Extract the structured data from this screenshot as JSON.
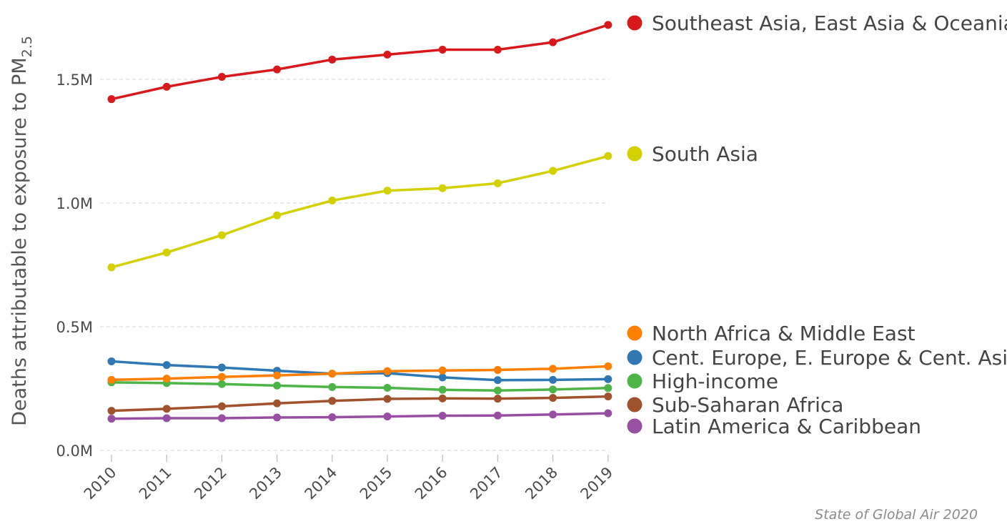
{
  "chart_data": {
    "type": "line",
    "x": [
      "2010",
      "2011",
      "2012",
      "2013",
      "2014",
      "2015",
      "2016",
      "2017",
      "2018",
      "2019"
    ],
    "ylabel_main": "Deaths attributable to exposure to PM",
    "ylabel_sub": "2.5",
    "ylim": [
      0,
      1.75
    ],
    "yticks": [
      0,
      0.5,
      1.0,
      1.5
    ],
    "ytick_labels": [
      "0.0M",
      "0.5M",
      "1.0M",
      "1.5M"
    ],
    "grid": "horizontal dashed",
    "legend_placement": "right, at line ends",
    "source": "State of Global Air 2020",
    "series": [
      {
        "name": "Southeast Asia, East Asia & Oceania",
        "color": "#d7191c",
        "values": [
          1.42,
          1.47,
          1.51,
          1.54,
          1.58,
          1.6,
          1.62,
          1.62,
          1.65,
          1.72
        ]
      },
      {
        "name": "South Asia",
        "color": "#d4d000",
        "values": [
          0.74,
          0.8,
          0.87,
          0.95,
          1.01,
          1.05,
          1.06,
          1.08,
          1.13,
          1.19
        ]
      },
      {
        "name": "North Africa & Middle East",
        "color": "#ff7f00",
        "values": [
          0.285,
          0.29,
          0.297,
          0.303,
          0.31,
          0.32,
          0.323,
          0.325,
          0.33,
          0.34
        ]
      },
      {
        "name": "Cent. Europe, E. Europe & Cent. Asia",
        "color": "#2f78b4",
        "values": [
          0.36,
          0.345,
          0.335,
          0.322,
          0.31,
          0.312,
          0.295,
          0.284,
          0.285,
          0.288
        ]
      },
      {
        "name": "High-income",
        "color": "#4db548",
        "values": [
          0.275,
          0.272,
          0.268,
          0.262,
          0.256,
          0.253,
          0.245,
          0.242,
          0.246,
          0.252
        ]
      },
      {
        "name": "Sub-Saharan Africa",
        "color": "#a0522d",
        "values": [
          0.16,
          0.168,
          0.178,
          0.19,
          0.2,
          0.208,
          0.21,
          0.209,
          0.212,
          0.218
        ]
      },
      {
        "name": "Latin America & Caribbean",
        "color": "#984ea3",
        "values": [
          0.128,
          0.13,
          0.13,
          0.133,
          0.134,
          0.137,
          0.14,
          0.141,
          0.145,
          0.15
        ]
      }
    ]
  }
}
